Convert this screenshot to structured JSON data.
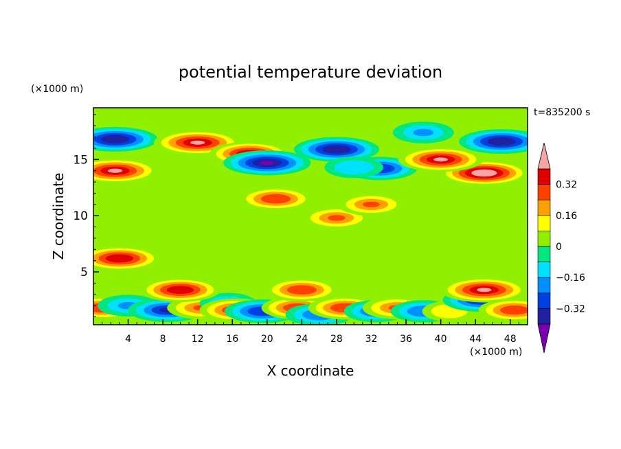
{
  "chart_data": {
    "type": "heatmap",
    "title": "potential temperature deviation",
    "xlabel": "X coordinate",
    "ylabel": "Z coordinate",
    "x_unit": "(×1000 m)",
    "y_unit": "(×1000 m)",
    "time_label": "t=835200 s",
    "xlim": [
      0,
      50
    ],
    "ylim": [
      0.3,
      19.6
    ],
    "x_ticks": [
      4,
      8,
      12,
      16,
      20,
      24,
      28,
      32,
      36,
      40,
      44,
      48
    ],
    "y_ticks": [
      5,
      10,
      15
    ],
    "colorbar": {
      "levels": [
        -0.4,
        -0.32,
        -0.24,
        -0.16,
        -0.08,
        0,
        0.08,
        0.16,
        0.24,
        0.32,
        0.4
      ],
      "tick_labels": [
        "0.32",
        "0.16",
        "0",
        "−0.16",
        "−0.32"
      ],
      "tick_values": [
        0.32,
        0.16,
        0,
        -0.16,
        -0.32
      ],
      "colors": [
        "#7a00b4",
        "#2020a0",
        "#0040e0",
        "#0090ff",
        "#00e0ff",
        "#00e680",
        "#90f000",
        "#ffff00",
        "#ffa000",
        "#ff4000",
        "#e00000",
        "#f5a5a5"
      ],
      "under_color": "#7a00b4",
      "over_color": "#f5a5a5"
    },
    "background_level": 0.04,
    "features": [
      {
        "x": 2.5,
        "z": 16.8,
        "value": -0.4
      },
      {
        "x": 2.5,
        "z": 14.0,
        "value": 0.42
      },
      {
        "x": 12.0,
        "z": 16.5,
        "value": 0.42
      },
      {
        "x": 18.0,
        "z": 15.5,
        "value": 0.36
      },
      {
        "x": 20.0,
        "z": 14.7,
        "value": -0.42
      },
      {
        "x": 28.0,
        "z": 15.9,
        "value": -0.4
      },
      {
        "x": 33.0,
        "z": 14.2,
        "value": -0.3
      },
      {
        "x": 30.0,
        "z": 14.3,
        "value": -0.16
      },
      {
        "x": 45.0,
        "z": 13.8,
        "value": 0.44
      },
      {
        "x": 40.0,
        "z": 15.0,
        "value": 0.4
      },
      {
        "x": 47.0,
        "z": 16.6,
        "value": -0.4
      },
      {
        "x": 38.0,
        "z": 17.4,
        "value": -0.18
      },
      {
        "x": 21.0,
        "z": 11.5,
        "value": 0.3
      },
      {
        "x": 28.0,
        "z": 9.8,
        "value": 0.26
      },
      {
        "x": 32.0,
        "z": 11.0,
        "value": 0.24
      },
      {
        "x": 3.0,
        "z": 6.2,
        "value": 0.38
      },
      {
        "x": 1.0,
        "z": 1.8,
        "value": 0.3
      },
      {
        "x": 4.0,
        "z": 2.0,
        "value": -0.18
      },
      {
        "x": 8.5,
        "z": 1.6,
        "value": -0.34
      },
      {
        "x": 12.5,
        "z": 1.8,
        "value": 0.26
      },
      {
        "x": 15.5,
        "z": 2.2,
        "value": -0.14
      },
      {
        "x": 16.5,
        "z": 1.6,
        "value": 0.3
      },
      {
        "x": 19.5,
        "z": 1.5,
        "value": -0.32
      },
      {
        "x": 23.5,
        "z": 1.8,
        "value": 0.28
      },
      {
        "x": 26.0,
        "z": 1.2,
        "value": -0.24
      },
      {
        "x": 29.0,
        "z": 1.8,
        "value": 0.3
      },
      {
        "x": 32.5,
        "z": 1.5,
        "value": -0.2
      },
      {
        "x": 35.0,
        "z": 1.8,
        "value": 0.26
      },
      {
        "x": 38.0,
        "z": 1.5,
        "value": -0.22
      },
      {
        "x": 41.0,
        "z": 1.5,
        "value": 0.12
      },
      {
        "x": 44.5,
        "z": 2.5,
        "value": -0.3
      },
      {
        "x": 48.5,
        "z": 1.6,
        "value": 0.28
      },
      {
        "x": 45.0,
        "z": 3.4,
        "value": 0.42
      },
      {
        "x": 10.0,
        "z": 3.4,
        "value": 0.36
      },
      {
        "x": 24.0,
        "z": 3.4,
        "value": 0.3
      }
    ]
  }
}
